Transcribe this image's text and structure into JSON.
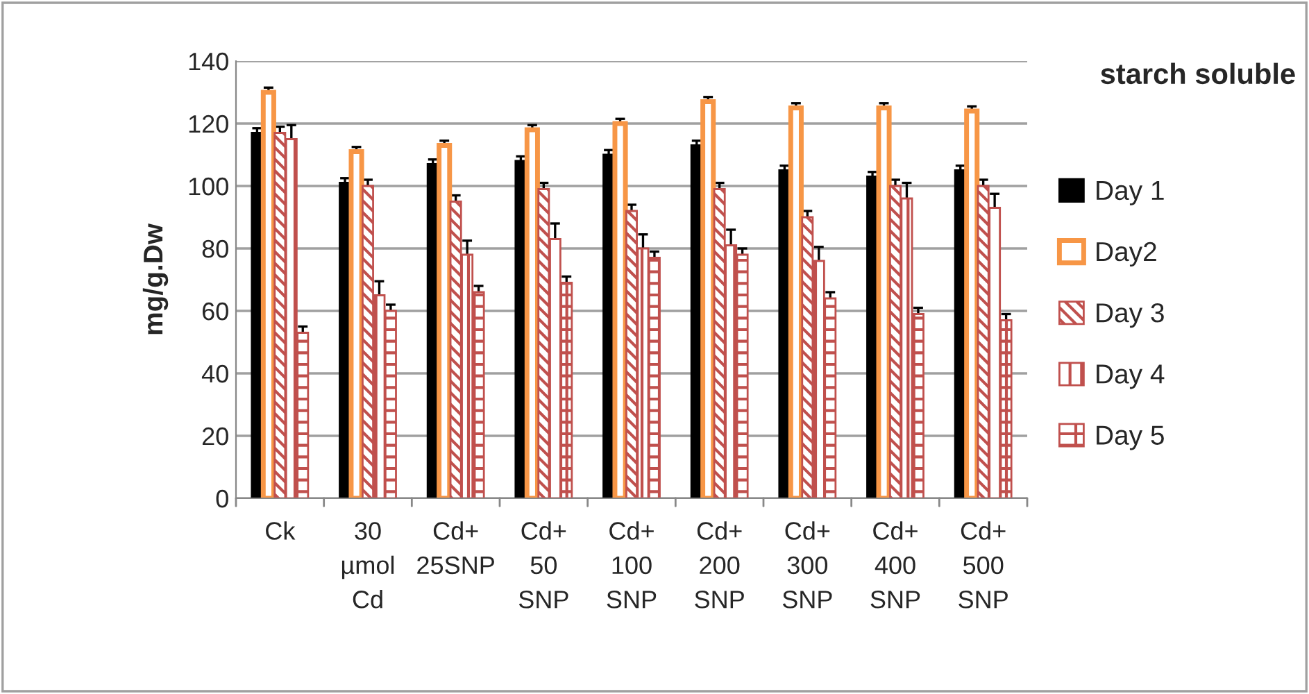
{
  "chart_data": {
    "type": "bar",
    "title": "starch soluble",
    "ylabel": "mg/g.Dw",
    "categories": [
      "Ck",
      "30\nµmol\nCd",
      "Cd+\n25SNP",
      "Cd+\n50\nSNP",
      "Cd+\n100\nSNP",
      "Cd+\n200\nSNP",
      "Cd+\n300\nSNP",
      "Cd+\n400\nSNP",
      "Cd+\n500\nSNP"
    ],
    "series": [
      {
        "name": "Day 1",
        "color": "#000000",
        "values": [
          117,
          101,
          107,
          108,
          110,
          113,
          105,
          103,
          105
        ],
        "errors": [
          1.5,
          1.5,
          1.5,
          1.5,
          1.5,
          1.5,
          1.5,
          1.5,
          1.5
        ]
      },
      {
        "name": "Day2",
        "color": "#f79646",
        "values": [
          130,
          111,
          113,
          118,
          120,
          127,
          125,
          125,
          124
        ],
        "errors": [
          1.5,
          1.5,
          1.5,
          1.5,
          1.5,
          1.5,
          1.5,
          1.5,
          1.5
        ]
      },
      {
        "name": "Day 3",
        "color": "#c0504d",
        "values": [
          117,
          100,
          95,
          99,
          92,
          99,
          90,
          100,
          100
        ],
        "errors": [
          2,
          2,
          2,
          2,
          2,
          2,
          2,
          2,
          2
        ]
      },
      {
        "name": "Day 4",
        "color": "#c0504d",
        "values": [
          115,
          65,
          78,
          83,
          80,
          81,
          76,
          96,
          93
        ],
        "errors": [
          4.5,
          4.5,
          4.5,
          5,
          4.5,
          5,
          4.5,
          5,
          4.5
        ]
      },
      {
        "name": "Day 5",
        "color": "#c0504d",
        "values": [
          53,
          60,
          66,
          69,
          77,
          78,
          64,
          59,
          57
        ],
        "errors": [
          2,
          2,
          2,
          2,
          2,
          2,
          2,
          2,
          2
        ]
      }
    ],
    "ylim": [
      0,
      140
    ],
    "yticks": [
      0,
      20,
      40,
      60,
      80,
      100,
      120,
      140
    ],
    "grid": "y",
    "legend": "right"
  }
}
